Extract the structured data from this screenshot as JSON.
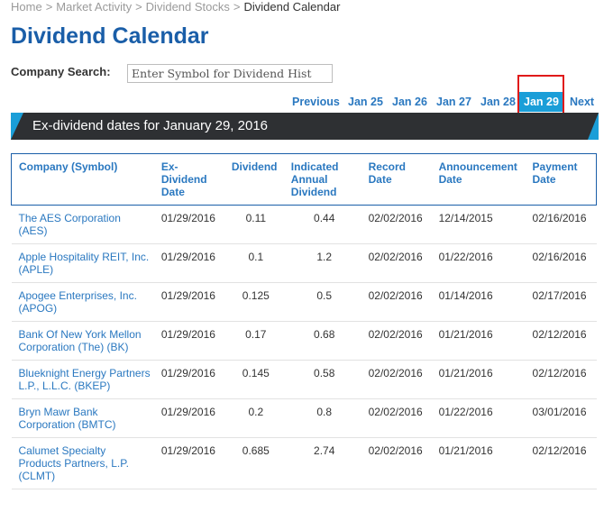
{
  "breadcrumb": {
    "items": [
      "Home",
      "Market Activity",
      "Dividend Stocks"
    ],
    "current": "Dividend Calendar",
    "separator": ">"
  },
  "page_title": "Dividend Calendar",
  "search": {
    "label": "Company Search:",
    "placeholder": "Enter Symbol for Dividend Hist"
  },
  "date_nav": {
    "previous": "Previous",
    "dates": [
      "Jan 25",
      "Jan 26",
      "Jan 27",
      "Jan 28",
      "Jan 29"
    ],
    "active": "Jan 29",
    "next": "Next"
  },
  "banner": "Ex-dividend dates for January 29, 2016",
  "colors": {
    "title": "#1a5ea8",
    "link": "#2a78c0",
    "accent": "#1a9ed8",
    "banner_bg": "#2e3033",
    "highlight": "#e01a1a"
  },
  "table": {
    "headers": [
      "Company (Symbol)",
      "Ex-Dividend Date",
      "Dividend",
      "Indicated Annual Dividend",
      "Record Date",
      "Announcement Date",
      "Payment Date"
    ],
    "rows": [
      [
        "The AES Corporation (AES)",
        "01/29/2016",
        "0.11",
        "0.44",
        "02/02/2016",
        "12/14/2015",
        "02/16/2016"
      ],
      [
        "Apple Hospitality REIT, Inc. (APLE)",
        "01/29/2016",
        "0.1",
        "1.2",
        "02/02/2016",
        "01/22/2016",
        "02/16/2016"
      ],
      [
        "Apogee Enterprises, Inc. (APOG)",
        "01/29/2016",
        "0.125",
        "0.5",
        "02/02/2016",
        "01/14/2016",
        "02/17/2016"
      ],
      [
        "Bank Of New York Mellon Corporation (The) (BK)",
        "01/29/2016",
        "0.17",
        "0.68",
        "02/02/2016",
        "01/21/2016",
        "02/12/2016"
      ],
      [
        "Blueknight Energy Partners L.P., L.L.C. (BKEP)",
        "01/29/2016",
        "0.145",
        "0.58",
        "02/02/2016",
        "01/21/2016",
        "02/12/2016"
      ],
      [
        "Bryn Mawr Bank Corporation (BMTC)",
        "01/29/2016",
        "0.2",
        "0.8",
        "02/02/2016",
        "01/22/2016",
        "03/01/2016"
      ],
      [
        "Calumet Specialty Products Partners, L.P. (CLMT)",
        "01/29/2016",
        "0.685",
        "2.74",
        "02/02/2016",
        "01/21/2016",
        "02/12/2016"
      ]
    ]
  }
}
